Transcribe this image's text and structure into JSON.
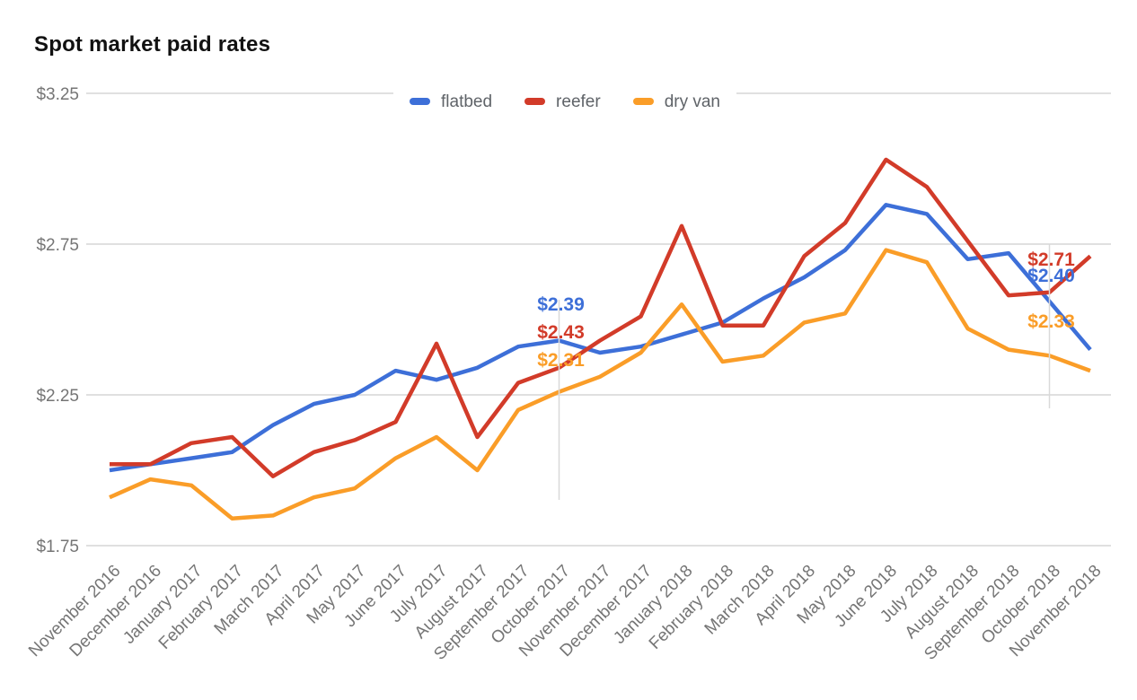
{
  "title": "Spot market paid rates",
  "colors": {
    "flatbed": "#3D6FD8",
    "reefer": "#D23B29",
    "dry_van": "#FA9D28",
    "axis_text": "#757575",
    "legend_text": "#5f6368",
    "gridline": "#E0E0E0",
    "annotation_stem": "#D9D9D9",
    "title_text": "#111111"
  },
  "chart_data": {
    "type": "line",
    "title": "Spot market paid rates",
    "x": [
      "November 2016",
      "December 2016",
      "January 2017",
      "February 2017",
      "March 2017",
      "April 2017",
      "May 2017",
      "June 2017",
      "July 2017",
      "August 2017",
      "September 2017",
      "October 2017",
      "November 2017",
      "December 2017",
      "January 2018",
      "February 2018",
      "March 2018",
      "April 2018",
      "May 2018",
      "June 2018",
      "July 2018",
      "August 2018",
      "September 2018",
      "October 2018",
      "November 2018"
    ],
    "series": [
      {
        "name": "flatbed",
        "color": "#3D6FD8",
        "values": [
          2.0,
          2.02,
          2.04,
          2.06,
          2.15,
          2.22,
          2.25,
          2.33,
          2.3,
          2.34,
          2.41,
          2.43,
          2.39,
          2.41,
          2.45,
          2.49,
          2.57,
          2.64,
          2.73,
          2.88,
          2.85,
          2.7,
          2.72,
          2.56,
          2.4
        ]
      },
      {
        "name": "reefer",
        "color": "#D23B29",
        "values": [
          2.02,
          2.02,
          2.09,
          2.11,
          1.98,
          2.06,
          2.1,
          2.16,
          2.42,
          2.11,
          2.29,
          2.34,
          2.43,
          2.51,
          2.81,
          2.48,
          2.48,
          2.71,
          2.82,
          3.03,
          2.94,
          2.76,
          2.58,
          2.59,
          2.71
        ]
      },
      {
        "name": "dry van",
        "color": "#FA9D28",
        "values": [
          1.91,
          1.97,
          1.95,
          1.84,
          1.85,
          1.91,
          1.94,
          2.04,
          2.11,
          2.0,
          2.2,
          2.26,
          2.31,
          2.39,
          2.55,
          2.36,
          2.38,
          2.49,
          2.52,
          2.73,
          2.69,
          2.47,
          2.4,
          2.38,
          2.33
        ]
      }
    ],
    "ylabel_ticks": [
      "$3.25",
      "$2.75",
      "$2.25",
      "$1.75"
    ],
    "ytick_values": [
      3.25,
      2.75,
      2.25,
      1.75
    ],
    "ylim": [
      1.75,
      3.25
    ],
    "grid": true,
    "legend_position": "top",
    "annotations": [
      {
        "x_label": "November 2017",
        "x_index": 12,
        "labels": [
          {
            "series": "flatbed",
            "text": "$2.39"
          },
          {
            "series": "reefer",
            "text": "$2.43"
          },
          {
            "series": "dry van",
            "text": "$2.31"
          }
        ]
      },
      {
        "x_label": "November 2018",
        "x_index": 24,
        "labels": [
          {
            "series": "flatbed",
            "text": "$2.40"
          },
          {
            "series": "reefer",
            "text": "$2.71"
          },
          {
            "series": "dry van",
            "text": "$2.33"
          }
        ]
      }
    ]
  }
}
